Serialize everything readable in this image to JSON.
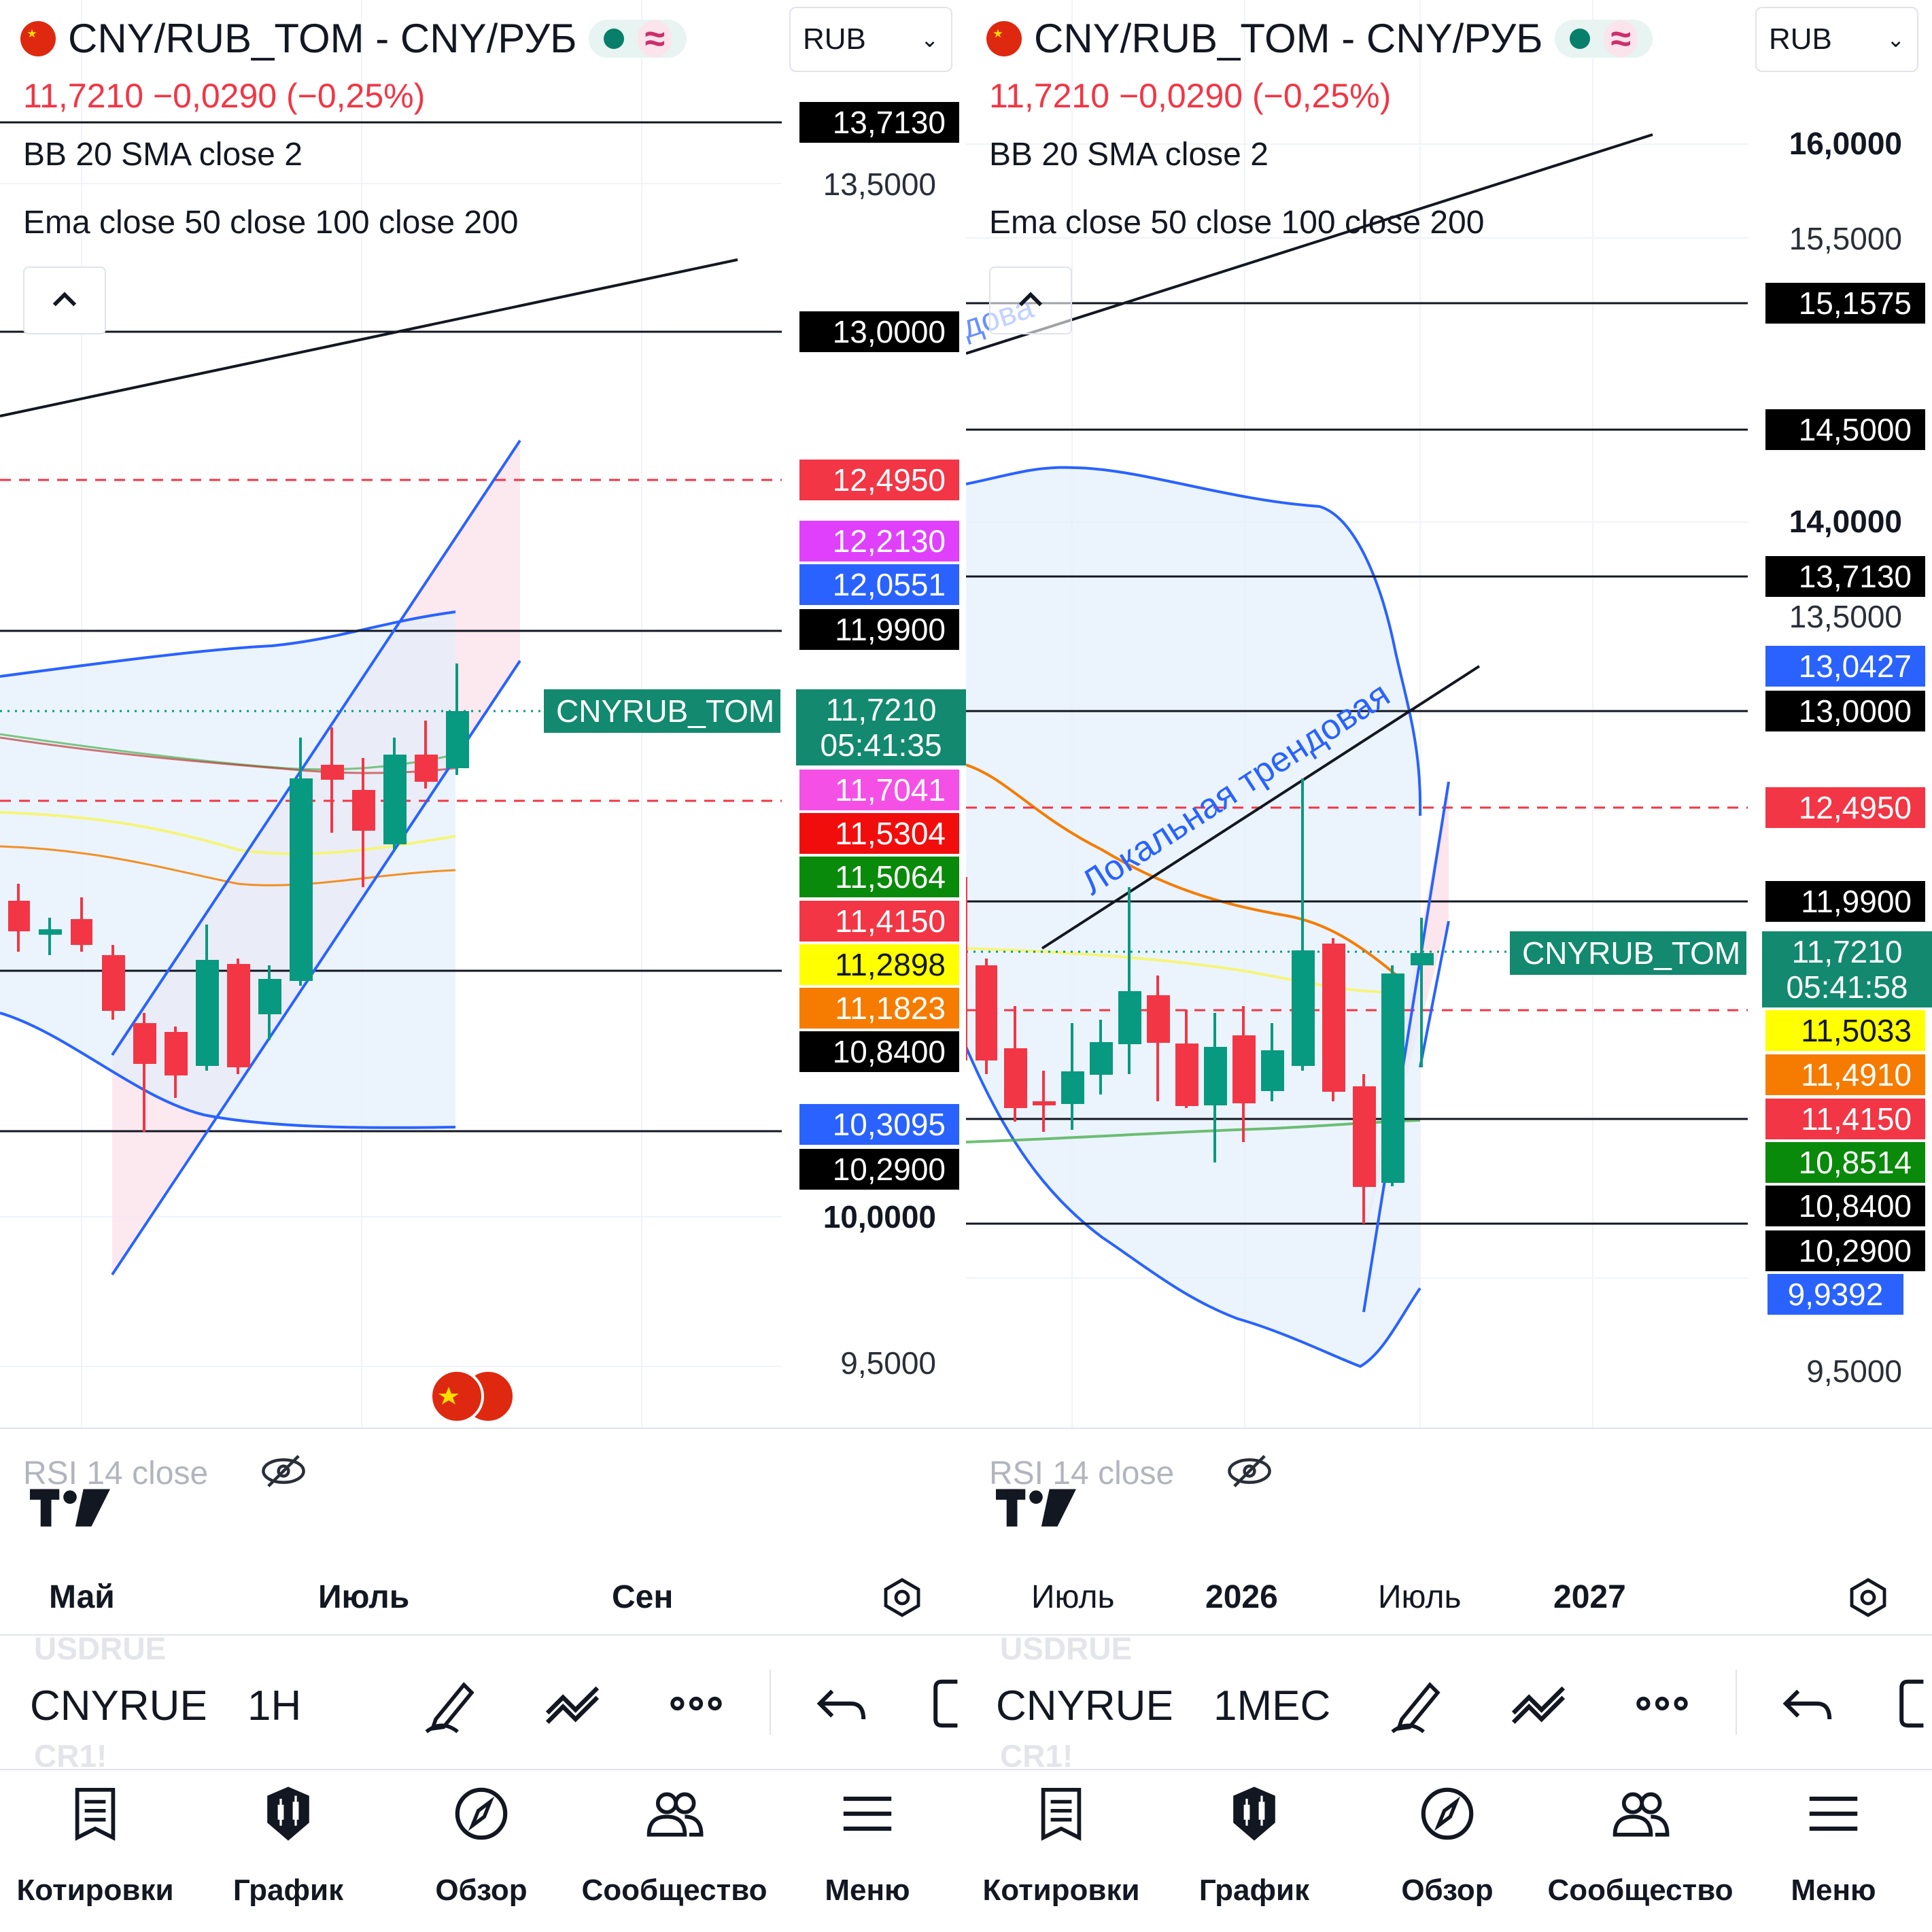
{
  "panes": [
    {
      "header": {
        "title": "CNY/RUB_TOM - CNY/РУБ",
        "currency": "RUB",
        "price": "11,7210",
        "change": "−0,0290",
        "change_pct": "(−0,25%)"
      },
      "indicators": [
        "BB 20 SMA close 2",
        "Ema close 50 close 100 close 200"
      ],
      "price_axis_ticks": [
        "13,5000",
        "10,0000",
        "9,5000"
      ],
      "price_labels": [
        {
          "text": "13,7130",
          "bg": "#000000",
          "fg": "#ffffff"
        },
        {
          "text": "13,0000",
          "bg": "#000000",
          "fg": "#ffffff"
        },
        {
          "text": "12,4950",
          "bg": "#f23645",
          "fg": "#ffffff"
        },
        {
          "text": "12,2130",
          "bg": "#e040fb",
          "fg": "#ffffff"
        },
        {
          "text": "12,0551",
          "bg": "#2962ff",
          "fg": "#ffffff"
        },
        {
          "text": "11,9900",
          "bg": "#000000",
          "fg": "#ffffff"
        },
        {
          "text": "11,7041",
          "bg": "#f550e6",
          "fg": "#ffffff"
        },
        {
          "text": "11,5304",
          "bg": "#f20d0d",
          "fg": "#ffffff"
        },
        {
          "text": "11,5064",
          "bg": "#0a8a0a",
          "fg": "#ffffff"
        },
        {
          "text": "11,4150",
          "bg": "#f23645",
          "fg": "#ffffff"
        },
        {
          "text": "11,2898",
          "bg": "#ffff00",
          "fg": "#131722"
        },
        {
          "text": "11,1823",
          "bg": "#f57c00",
          "fg": "#ffffff"
        },
        {
          "text": "10,8400",
          "bg": "#000000",
          "fg": "#ffffff"
        },
        {
          "text": "10,3095",
          "bg": "#2962ff",
          "fg": "#ffffff"
        },
        {
          "text": "10,2900",
          "bg": "#000000",
          "fg": "#ffffff"
        }
      ],
      "symbol_tag": "CNYRUB_TOM",
      "last_price": "11,7210",
      "countdown": "05:41:35",
      "rsi_label": "RSI 14 close",
      "time_axis": [
        {
          "label": "Май",
          "bold": true
        },
        {
          "label": "Июль",
          "bold": true
        },
        {
          "label": "Сен",
          "bold": true
        }
      ],
      "toolbar": {
        "ghost_top": "USDRUE",
        "symbol": "CNYRUE",
        "ghost_bottom": "CR1!",
        "interval": "1H"
      },
      "annotation": ""
    },
    {
      "header": {
        "title": "CNY/RUB_TOM - CNY/РУБ",
        "currency": "RUB",
        "price": "11,7210",
        "change": "−0,0290",
        "change_pct": "(−0,25%)"
      },
      "indicators": [
        "BB 20 SMA close 2",
        "Ema close 50 close 100 close 200"
      ],
      "price_axis_ticks": [
        "16,0000",
        "15,5000",
        "14,0000",
        "13,5000",
        "9,5000"
      ],
      "price_labels": [
        {
          "text": "15,1575",
          "bg": "#000000",
          "fg": "#ffffff"
        },
        {
          "text": "14,5000",
          "bg": "#000000",
          "fg": "#ffffff"
        },
        {
          "text": "13,7130",
          "bg": "#000000",
          "fg": "#ffffff"
        },
        {
          "text": "13,0427",
          "bg": "#2962ff",
          "fg": "#ffffff"
        },
        {
          "text": "13,0000",
          "bg": "#000000",
          "fg": "#ffffff"
        },
        {
          "text": "12,4950",
          "bg": "#f23645",
          "fg": "#ffffff"
        },
        {
          "text": "11,9900",
          "bg": "#000000",
          "fg": "#ffffff"
        },
        {
          "text": "11,5033",
          "bg": "#ffff00",
          "fg": "#131722"
        },
        {
          "text": "11,4910",
          "bg": "#f57c00",
          "fg": "#ffffff"
        },
        {
          "text": "11,4150",
          "bg": "#f23645",
          "fg": "#ffffff"
        },
        {
          "text": "10,8514",
          "bg": "#0a8a0a",
          "fg": "#ffffff"
        },
        {
          "text": "10,8400",
          "bg": "#000000",
          "fg": "#ffffff"
        },
        {
          "text": "10,2900",
          "bg": "#000000",
          "fg": "#ffffff"
        },
        {
          "text": "9,9392",
          "bg": "#2962ff",
          "fg": "#ffffff"
        }
      ],
      "symbol_tag": "CNYRUB_TOM",
      "last_price": "11,7210",
      "countdown": "05:41:58",
      "rsi_label": "RSI 14 close",
      "time_axis": [
        {
          "label": "Июль",
          "bold": false
        },
        {
          "label": "2026",
          "bold": true
        },
        {
          "label": "Июль",
          "bold": false
        },
        {
          "label": "2027",
          "bold": true
        }
      ],
      "toolbar": {
        "ghost_top": "USDRUE",
        "symbol": "CNYRUE",
        "ghost_bottom": "CR1!",
        "interval": "1МЕС"
      },
      "annotation": "Локальная трендовая"
    }
  ],
  "bottom_nav": [
    "Котировки",
    "График",
    "Обзор",
    "Сообщество",
    "Меню"
  ],
  "colors": {
    "up": "#089981",
    "down": "#f23645",
    "bb_line": "#2962ff",
    "bb_fill": "#e3effb",
    "accent_pink": "#fce4ec"
  }
}
